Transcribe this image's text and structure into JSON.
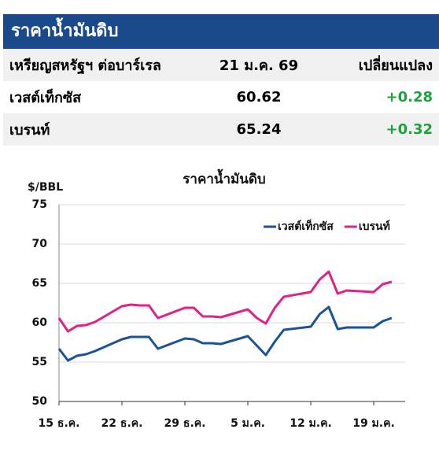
{
  "header": {
    "title": "ราคาน้ำมันดิบ"
  },
  "table": {
    "columns": [
      "เหรียญสหรัฐฯ ต่อบาร์เรล",
      "21 ม.ค. 69",
      "เปลี่ยนแปลง"
    ],
    "rows": [
      [
        "เวสต์เท็กซัส",
        "60.62",
        "+0.28"
      ],
      [
        "เบรนท์",
        "65.24",
        "+0.32"
      ]
    ]
  },
  "chart_data": {
    "type": "line",
    "title": "ราคาน้ำมันดิบ",
    "ylabel": "$/BBL",
    "x": [
      0,
      1,
      2,
      3,
      4,
      7,
      8,
      9,
      10,
      11,
      14,
      15,
      16,
      17,
      18,
      21,
      22,
      23,
      24,
      25,
      28,
      29,
      30,
      31,
      32,
      35,
      36,
      37
    ],
    "series": [
      {
        "name": "เวสต์เท็กซัส",
        "color": "#1a5496",
        "values": [
          56.7,
          55.2,
          55.8,
          56.0,
          56.4,
          57.9,
          58.2,
          58.2,
          58.2,
          56.7,
          58.0,
          57.9,
          57.4,
          57.4,
          57.3,
          58.3,
          57.1,
          55.9,
          57.6,
          59.1,
          59.5,
          61.1,
          62.0,
          59.2,
          59.4,
          59.4,
          60.2,
          60.6
        ]
      },
      {
        "name": "เบรนท์",
        "color": "#e0218a",
        "values": [
          60.6,
          58.9,
          59.6,
          59.7,
          60.1,
          62.1,
          62.3,
          62.2,
          62.2,
          60.6,
          61.9,
          61.9,
          60.8,
          60.8,
          60.7,
          61.7,
          60.6,
          59.9,
          61.9,
          63.3,
          63.9,
          65.5,
          66.5,
          63.7,
          64.1,
          63.9,
          64.9,
          65.2
        ]
      }
    ],
    "xlim": [
      0,
      38.5
    ],
    "xticks": [
      {
        "value": 0,
        "label": "15 ธ.ค."
      },
      {
        "value": 7,
        "label": "22 ธ.ค."
      },
      {
        "value": 14,
        "label": "29 ธ.ค."
      },
      {
        "value": 21,
        "label": "5 ม.ค."
      },
      {
        "value": 28,
        "label": "12 ม.ค."
      },
      {
        "value": 35,
        "label": "19 ม.ค."
      }
    ],
    "ylim": [
      50,
      75
    ],
    "yticks": [
      50,
      55,
      60,
      65,
      70,
      75
    ],
    "grid": true,
    "legend": "top-right"
  }
}
